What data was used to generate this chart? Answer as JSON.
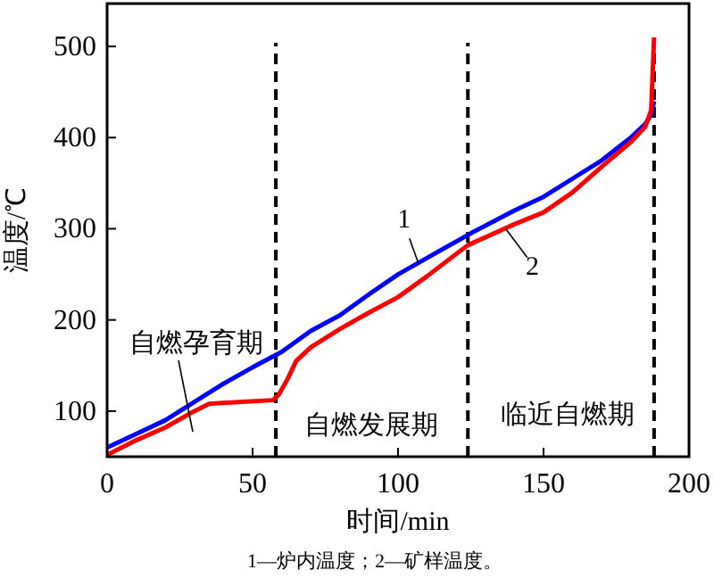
{
  "chart_data": {
    "type": "line",
    "xlabel": "时间/min",
    "ylabel": "温度/℃",
    "xlim": [
      0,
      200
    ],
    "xticks": [
      0,
      50,
      100,
      150,
      200
    ],
    "ylim": [
      50,
      547
    ],
    "yticks": [
      100,
      200,
      300,
      400,
      500
    ],
    "grid": false,
    "series": [
      {
        "color": "#0000ff",
        "x": [
          0,
          10,
          20,
          30,
          40,
          50,
          60,
          70,
          80,
          90,
          100,
          110,
          125,
          140,
          150,
          160,
          170,
          180,
          185,
          187,
          188
        ],
        "values": [
          60,
          75,
          90,
          110,
          130,
          148,
          165,
          188,
          205,
          228,
          250,
          268,
          295,
          320,
          335,
          355,
          375,
          400,
          415,
          425,
          440
        ]
      },
      {
        "color": "#ff0000",
        "x": [
          0,
          10,
          20,
          30,
          35,
          45,
          57,
          59,
          62,
          65,
          70,
          80,
          90,
          100,
          110,
          124,
          140,
          150,
          160,
          170,
          180,
          185,
          187,
          188
        ],
        "values": [
          52,
          68,
          82,
          100,
          108,
          110,
          112,
          118,
          135,
          155,
          170,
          190,
          208,
          225,
          248,
          282,
          305,
          318,
          340,
          368,
          395,
          412,
          430,
          510
        ]
      }
    ],
    "ref_lines": [
      {
        "axis": "x",
        "value": 58,
        "line_style": "dashed",
        "color": "#000000"
      },
      {
        "axis": "x",
        "value": 124,
        "line_style": "dashed",
        "color": "#000000"
      },
      {
        "axis": "x",
        "value": 188,
        "line_style": "dashed",
        "color": "#000000"
      }
    ],
    "annotations": [
      {
        "text": "1",
        "x": 107,
        "y": 262
      },
      {
        "text": "2",
        "x": 137,
        "y": 300
      },
      "自燃孕育期",
      "自燃发展期",
      "临近自燃期",
      "1—炉内温度；2—矿样温度。"
    ]
  }
}
